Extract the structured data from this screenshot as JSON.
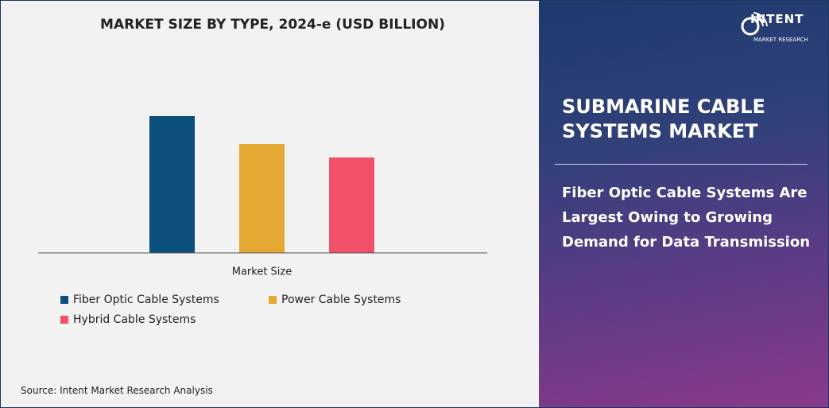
{
  "chart_data": {
    "type": "bar",
    "title": "MARKET SIZE BY TYPE, 2024-e (USD BILLION)",
    "categories": [
      "Market Size"
    ],
    "series": [
      {
        "name": "Fiber Optic Cable Systems",
        "color": "#0b4f7c",
        "values": [
          17.2
        ]
      },
      {
        "name": "Power Cable Systems",
        "color": "#e5a832",
        "values": [
          13.7
        ]
      },
      {
        "name": "Hybrid Cable Systems",
        "color": "#f0506a",
        "values": [
          12
        ]
      }
    ],
    "ylim": [
      0,
      20
    ]
  },
  "source": "Source: Intent Market Research Analysis",
  "panel": {
    "logo": "INTENT",
    "logo_sub": "MARKET RESEARCH",
    "heading": "SUBMARINE CABLE SYSTEMS MARKET",
    "subheading": "Fiber Optic Cable Systems Are Largest Owing to Growing Demand for Data Transmission"
  }
}
